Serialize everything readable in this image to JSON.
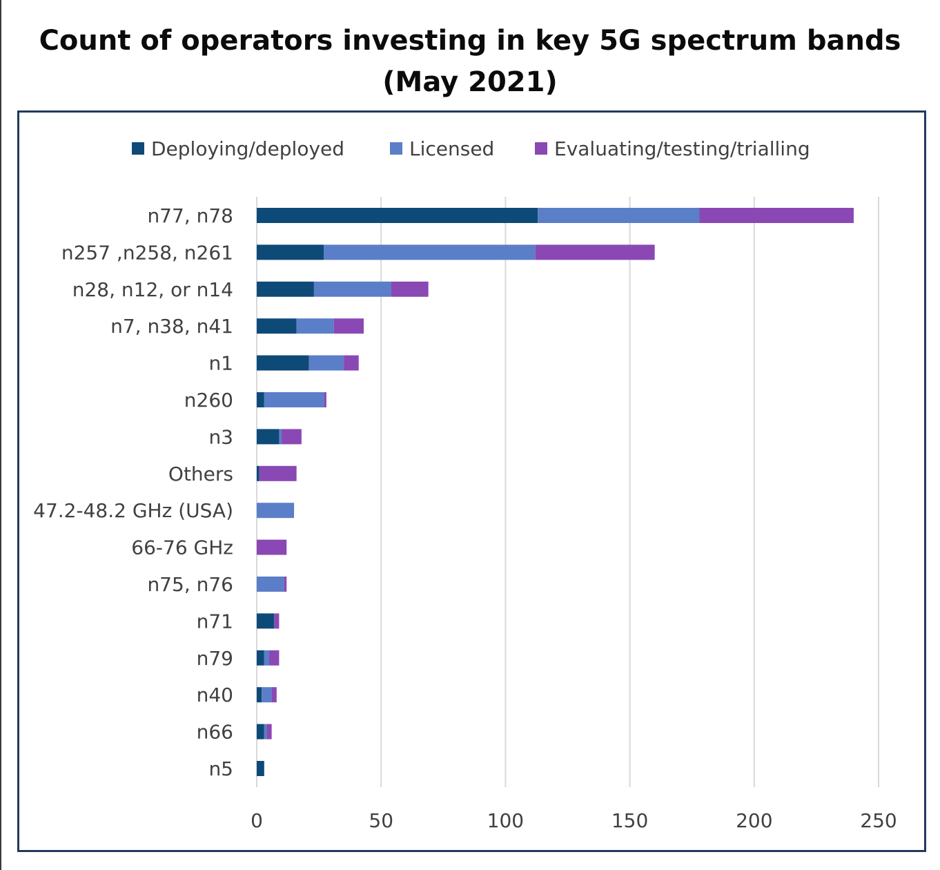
{
  "title_line1": "Count of operators investing in key 5G spectrum bands",
  "title_line2": "(May 2021)",
  "colors": {
    "deployed": "#0e4a78",
    "licensed": "#5b7ec8",
    "evaluating": "#8a48b4",
    "grid": "#d9d9d9",
    "frame": "#1f3a5a"
  },
  "chart_data": {
    "type": "bar",
    "orientation": "horizontal",
    "stacked": true,
    "title": "Count of operators investing in key 5G spectrum bands (May 2021)",
    "xlim": [
      0,
      250
    ],
    "xticks": [
      0,
      50,
      100,
      150,
      200,
      250
    ],
    "legend_position": "top",
    "grid": true,
    "categories": [
      "n77, n78",
      "n257 ,n258, n261",
      "n28, n12, or n14",
      "n7, n38, n41",
      "n1",
      "n260",
      "n3",
      "Others",
      "47.2-48.2 GHz (USA)",
      "66-76 GHz",
      "n75, n76",
      "n71",
      "n79",
      "n40",
      "n66",
      "n5"
    ],
    "series": [
      {
        "name": "Deploying/deployed",
        "values": [
          113,
          27,
          23,
          16,
          21,
          3,
          9,
          1,
          0,
          0,
          0,
          7,
          3,
          2,
          3,
          3
        ]
      },
      {
        "name": "Licensed",
        "values": [
          65,
          85,
          31,
          15,
          14,
          24,
          1,
          0,
          15,
          0,
          11,
          0,
          2,
          4,
          1,
          0
        ]
      },
      {
        "name": "Evaluating/testing/trialling",
        "values": [
          62,
          48,
          15,
          12,
          6,
          1,
          8,
          15,
          0,
          12,
          1,
          2,
          4,
          2,
          2,
          0
        ]
      }
    ]
  }
}
